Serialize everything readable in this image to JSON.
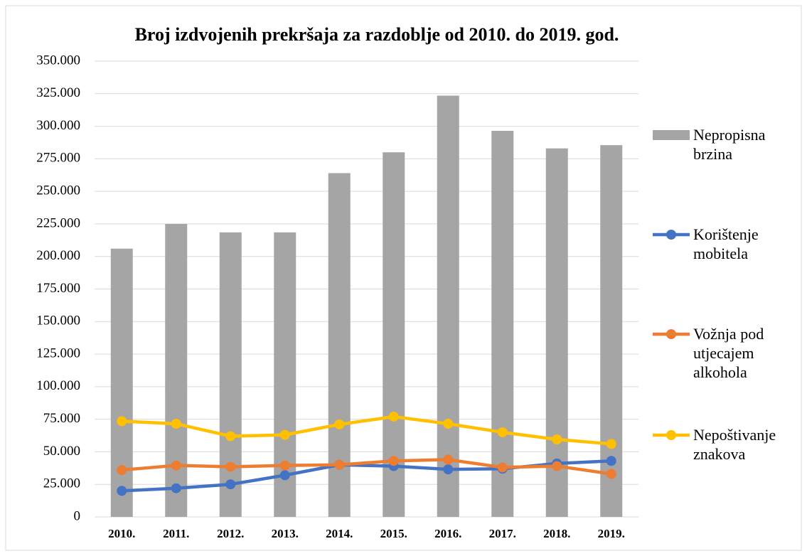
{
  "chart_data": {
    "type": "bar",
    "title": "Broj izdvojenih prekršaja za razdoblje od 2010. do 2019. god.",
    "categories": [
      "2010.",
      "2011.",
      "2012.",
      "2013.",
      "2014.",
      "2015.",
      "2016.",
      "2017.",
      "2018.",
      "2019."
    ],
    "series": [
      {
        "name": "Nepropisna brzina",
        "type": "bar",
        "color": "#a5a5a5",
        "values": [
          206000,
          225000,
          218500,
          218500,
          264000,
          280000,
          323500,
          296500,
          283000,
          285500
        ]
      },
      {
        "name": "Korištenje mobitela",
        "type": "line",
        "color": "#4472c4",
        "values": [
          20000,
          22000,
          25000,
          32000,
          40000,
          39000,
          36500,
          37000,
          41000,
          43000
        ]
      },
      {
        "name": "Vožnja pod utjecajem alkohola",
        "type": "line",
        "color": "#ed7d31",
        "values": [
          36000,
          39500,
          38500,
          39500,
          40000,
          43000,
          44000,
          38000,
          39000,
          33000
        ]
      },
      {
        "name": "Nepoštivanje znakova",
        "type": "line",
        "color": "#ffc000",
        "values": [
          73500,
          71500,
          62000,
          63000,
          71000,
          77000,
          71500,
          65000,
          59500,
          56000
        ]
      }
    ],
    "ylim": [
      0,
      350000
    ],
    "yticks": [
      0,
      {
        "value": 25000,
        "label": "25.000"
      },
      {
        "value": 50000,
        "label": "50.000"
      },
      {
        "value": 75000,
        "label": "75.000"
      },
      {
        "value": 100000,
        "label": "100.000"
      },
      {
        "value": 125000,
        "label": "125.000"
      },
      {
        "value": 150000,
        "label": "150.000"
      },
      {
        "value": 175000,
        "label": "175.000"
      },
      {
        "value": 200000,
        "label": "200.000"
      },
      {
        "value": 225000,
        "label": "225.000"
      },
      {
        "value": 250000,
        "label": "250.000"
      },
      {
        "value": 275000,
        "label": "275.000"
      },
      {
        "value": 300000,
        "label": "300.000"
      },
      {
        "value": 325000,
        "label": "325.000"
      },
      {
        "value": 350000,
        "label": "350.000"
      }
    ],
    "grid": true,
    "legend": "right"
  }
}
